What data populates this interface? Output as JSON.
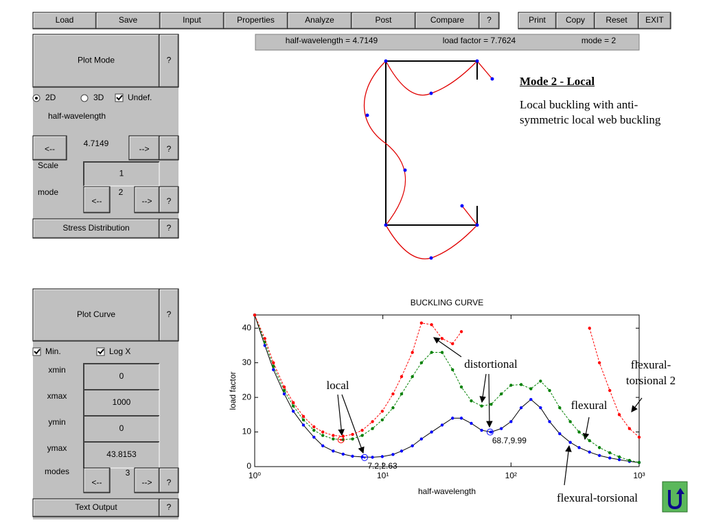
{
  "toolbar": {
    "left": [
      "Load",
      "Save",
      "Input",
      "Properties",
      "Analyze",
      "Post",
      "Compare",
      "?"
    ],
    "right": [
      "Print",
      "Copy",
      "Reset",
      "EXIT"
    ]
  },
  "status": [
    "half-wavelength = 4.7149",
    "load factor = 7.7624",
    "mode = 2"
  ],
  "plot_mode_panel": {
    "title": "Plot Mode",
    "help": "?",
    "options": [
      "2D",
      "3D",
      "Undef."
    ],
    "label": "half-wavelength",
    "value": "4.7149",
    "prev": "<--",
    "next": "-->",
    "scale_label": "Scale",
    "scale_value": "1",
    "mode_label": "mode",
    "mode_value": "2",
    "stress_button": "Stress Distribution"
  },
  "mode_description": {
    "title": "Mode 2 - Local",
    "text": "Local buckling with anti-symmetric local web buckling"
  },
  "plot_curve_panel": {
    "title": "Plot Curve",
    "options": [
      "Min.",
      "Log X"
    ],
    "fields": [
      {
        "label": "xmin",
        "value": "0"
      },
      {
        "label": "xmax",
        "value": "1000"
      },
      {
        "label": "ymin",
        "value": "0"
      },
      {
        "label": "ymax",
        "value": "43.8153"
      }
    ],
    "modes_label": "modes",
    "modes_value": "3",
    "text_output": "Text Output"
  },
  "chart_data": {
    "type": "line",
    "title": "BUCKLING CURVE",
    "x_label": "half-wavelength",
    "y_label": "load factor",
    "log_x": true,
    "xlim": [
      1,
      1000
    ],
    "xticks": [
      {
        "value": 1,
        "label": "10⁰"
      },
      {
        "value": 10,
        "label": "10¹"
      },
      {
        "value": 100,
        "label": "10²"
      },
      {
        "value": 1000,
        "label": "10³"
      }
    ],
    "ylim": [
      0,
      43.8153
    ],
    "yticks": [
      0,
      10,
      20,
      30,
      40
    ],
    "x": [
      1,
      1.2,
      1.4,
      1.7,
      2,
      2.4,
      2.9,
      3.4,
      4.1,
      4.9,
      5.8,
      6.9,
      8.3,
      9.9,
      12,
      14,
      17,
      20,
      24,
      29,
      35,
      41,
      49,
      59,
      70,
      84,
      100,
      120,
      143,
      170,
      200,
      240,
      290,
      340,
      410,
      490,
      590,
      700,
      840,
      1000
    ],
    "series": [
      {
        "color": "#0000ff",
        "line_color": "#000000",
        "dashed": false,
        "values": [
          43.8,
          35,
          28,
          21,
          16,
          12,
          8.5,
          6,
          4.5,
          3.6,
          3.0,
          2.8,
          2.7,
          2.9,
          3.5,
          4.5,
          6,
          8,
          10,
          12,
          14,
          14,
          12.5,
          10.5,
          10,
          11,
          13,
          17,
          19.4,
          17,
          13,
          9.5,
          7,
          5.5,
          4.2,
          3.2,
          2.5,
          2,
          1.5,
          1.2
        ]
      },
      {
        "color": "#008000",
        "line_color": "#008000",
        "dashed": true,
        "values": [
          43.8,
          36,
          29,
          22,
          17.5,
          13.5,
          10.5,
          9,
          8,
          7.8,
          8,
          9,
          11,
          13.5,
          17,
          21,
          26,
          30,
          33,
          33,
          28,
          23,
          19,
          17.5,
          18,
          21,
          23.5,
          23.7,
          22.5,
          24.7,
          22,
          17,
          13,
          10,
          7.5,
          5.5,
          4,
          2.8,
          1.8,
          1.2
        ]
      },
      {
        "color": "#ff0000",
        "line_color": "#ff0000",
        "dashed": true,
        "values": [
          43.8,
          37,
          30,
          23,
          18.5,
          14.5,
          11.5,
          10,
          9,
          8.8,
          9.3,
          10.5,
          13,
          16,
          21,
          26,
          33,
          41.5,
          41,
          37,
          35.5,
          39,
          null,
          null,
          null,
          null,
          null,
          null,
          null,
          null,
          null,
          null,
          null,
          null,
          40,
          30,
          22,
          15,
          11,
          8.5
        ]
      }
    ],
    "highlights": [
      {
        "x": 4.7149,
        "y": 7.7624,
        "color": "#ff0000"
      },
      {
        "x": 7.2,
        "y": 2.63,
        "color": "#0000ff",
        "label": "7.2,2.63"
      },
      {
        "x": 68.7,
        "y": 9.99,
        "color": "#0000ff",
        "label": "68.7,9.99"
      }
    ],
    "annotations": [
      [
        "local"
      ],
      [
        "distortional"
      ],
      [
        "flexural"
      ],
      [
        "flexural-torsional"
      ],
      [
        "flexural-",
        "torsional 2"
      ]
    ]
  }
}
